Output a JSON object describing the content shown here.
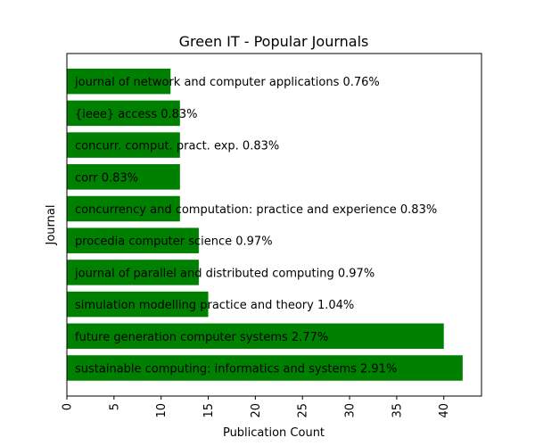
{
  "chart_data": {
    "type": "bar",
    "orientation": "horizontal",
    "title": "Green IT - Popular Journals",
    "xlabel": "Publication Count",
    "ylabel": "Journal",
    "xlim": [
      0,
      44
    ],
    "xticks": [
      0,
      5,
      10,
      15,
      20,
      25,
      30,
      35,
      40
    ],
    "grid": false,
    "legend": "none",
    "bar_color": "#008000",
    "categories": [
      "sustainable computing: informatics and systems",
      "future generation computer systems",
      "simulation modelling practice and theory",
      "journal of parallel and distributed computing",
      "procedia computer science",
      "concurrency and computation: practice and experience",
      "corr",
      "concurr. comput. pract. exp.",
      "{ieee} access",
      "journal of network and computer applications"
    ],
    "values": [
      42,
      40,
      15,
      14,
      14,
      12,
      12,
      12,
      12,
      11
    ],
    "percent_labels": [
      "2.91%",
      "2.77%",
      "1.04%",
      "0.97%",
      "0.97%",
      "0.83%",
      "0.83%",
      "0.83%",
      "0.83%",
      "0.76%"
    ]
  }
}
